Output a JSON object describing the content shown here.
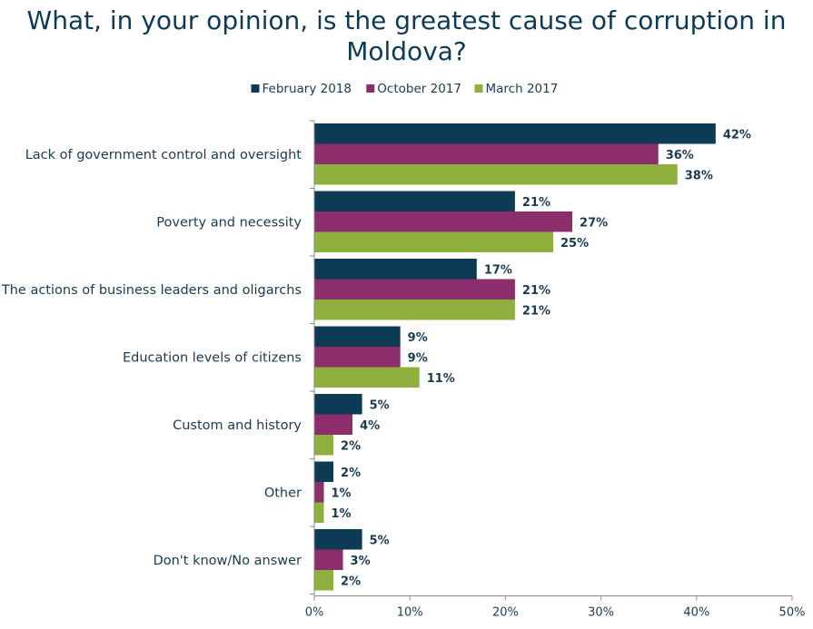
{
  "chart_data": {
    "type": "bar",
    "orientation": "horizontal",
    "title": "What, in your opinion, is the greatest cause  of corruption in Moldova?",
    "categories": [
      "Lack of government control and oversight",
      "Poverty and necessity",
      "The actions of business leaders and oligarchs",
      "Education levels of citizens",
      "Custom and history",
      "Other",
      "Don't know/No answer"
    ],
    "series": [
      {
        "name": "February 2018",
        "color": "#0d3b56",
        "values": [
          42,
          21,
          17,
          9,
          5,
          2,
          5
        ]
      },
      {
        "name": "October 2017",
        "color": "#8b2e6b",
        "values": [
          36,
          27,
          21,
          9,
          4,
          1,
          3
        ]
      },
      {
        "name": "March 2017",
        "color": "#8fb03e",
        "values": [
          38,
          25,
          21,
          11,
          2,
          1,
          2
        ]
      }
    ],
    "value_suffix": "%",
    "xlim": [
      0,
      50
    ],
    "xticks": [
      "0%",
      "10%",
      "20%",
      "30%",
      "40%",
      "50%"
    ],
    "grid": false,
    "legend_position": "top-center"
  }
}
